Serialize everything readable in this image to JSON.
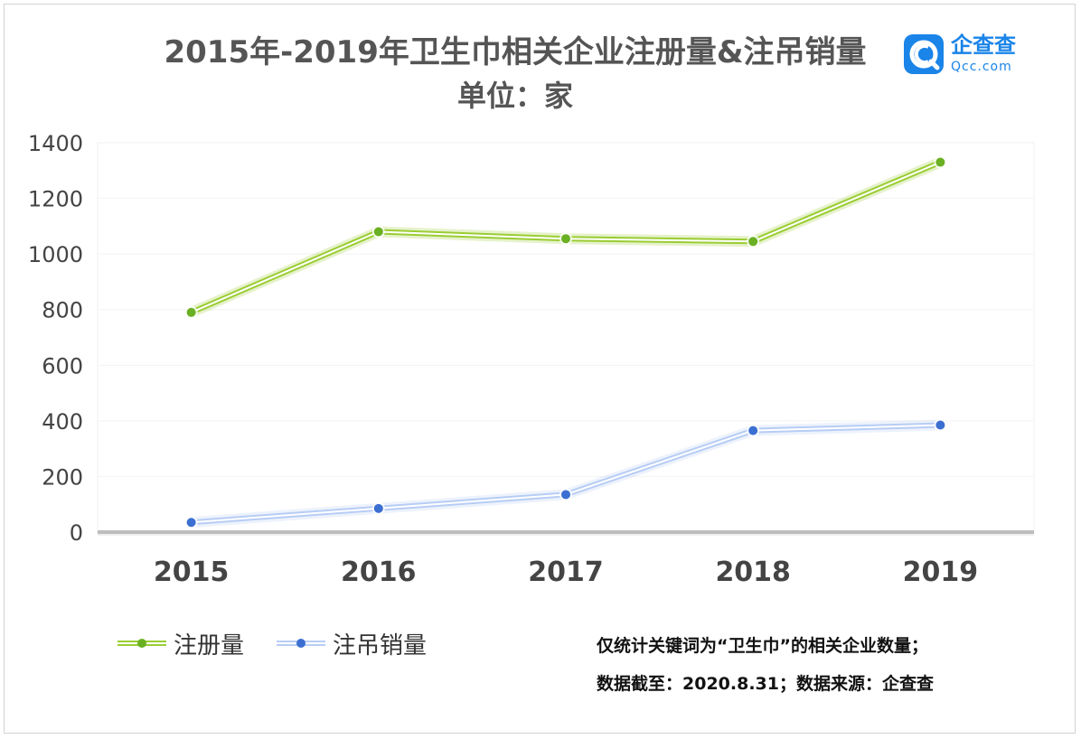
{
  "header": {
    "title": "2015年-2019年卫生巾相关企业注册量&注吊销量",
    "subtitle": "单位：家"
  },
  "logo": {
    "name": "企查查",
    "sub": "Qcc.com",
    "icon": "qcc-logo-icon",
    "color": "#1a84e8"
  },
  "chart_data": {
    "type": "line",
    "categories": [
      "2015",
      "2016",
      "2017",
      "2018",
      "2019"
    ],
    "ylim": [
      0,
      1400
    ],
    "yticks": [
      "0",
      "200",
      "400",
      "600",
      "800",
      "1000",
      "1200",
      "1400"
    ],
    "grid": true,
    "legend": "bottom-left",
    "series": [
      {
        "name": "注册量",
        "values": [
          790,
          1080,
          1055,
          1045,
          1330
        ],
        "color": "#9acd32",
        "marker": "#6ab023"
      },
      {
        "name": "注吊销量",
        "values": [
          35,
          85,
          135,
          365,
          385
        ],
        "color": "#b7cdf5",
        "marker": "#3b6fd1"
      }
    ]
  },
  "notes": {
    "line1": "仅统计关键词为“卫生巾”的相关企业数量；",
    "line2": "数据截至：2020.8.31；数据来源：企查查"
  }
}
